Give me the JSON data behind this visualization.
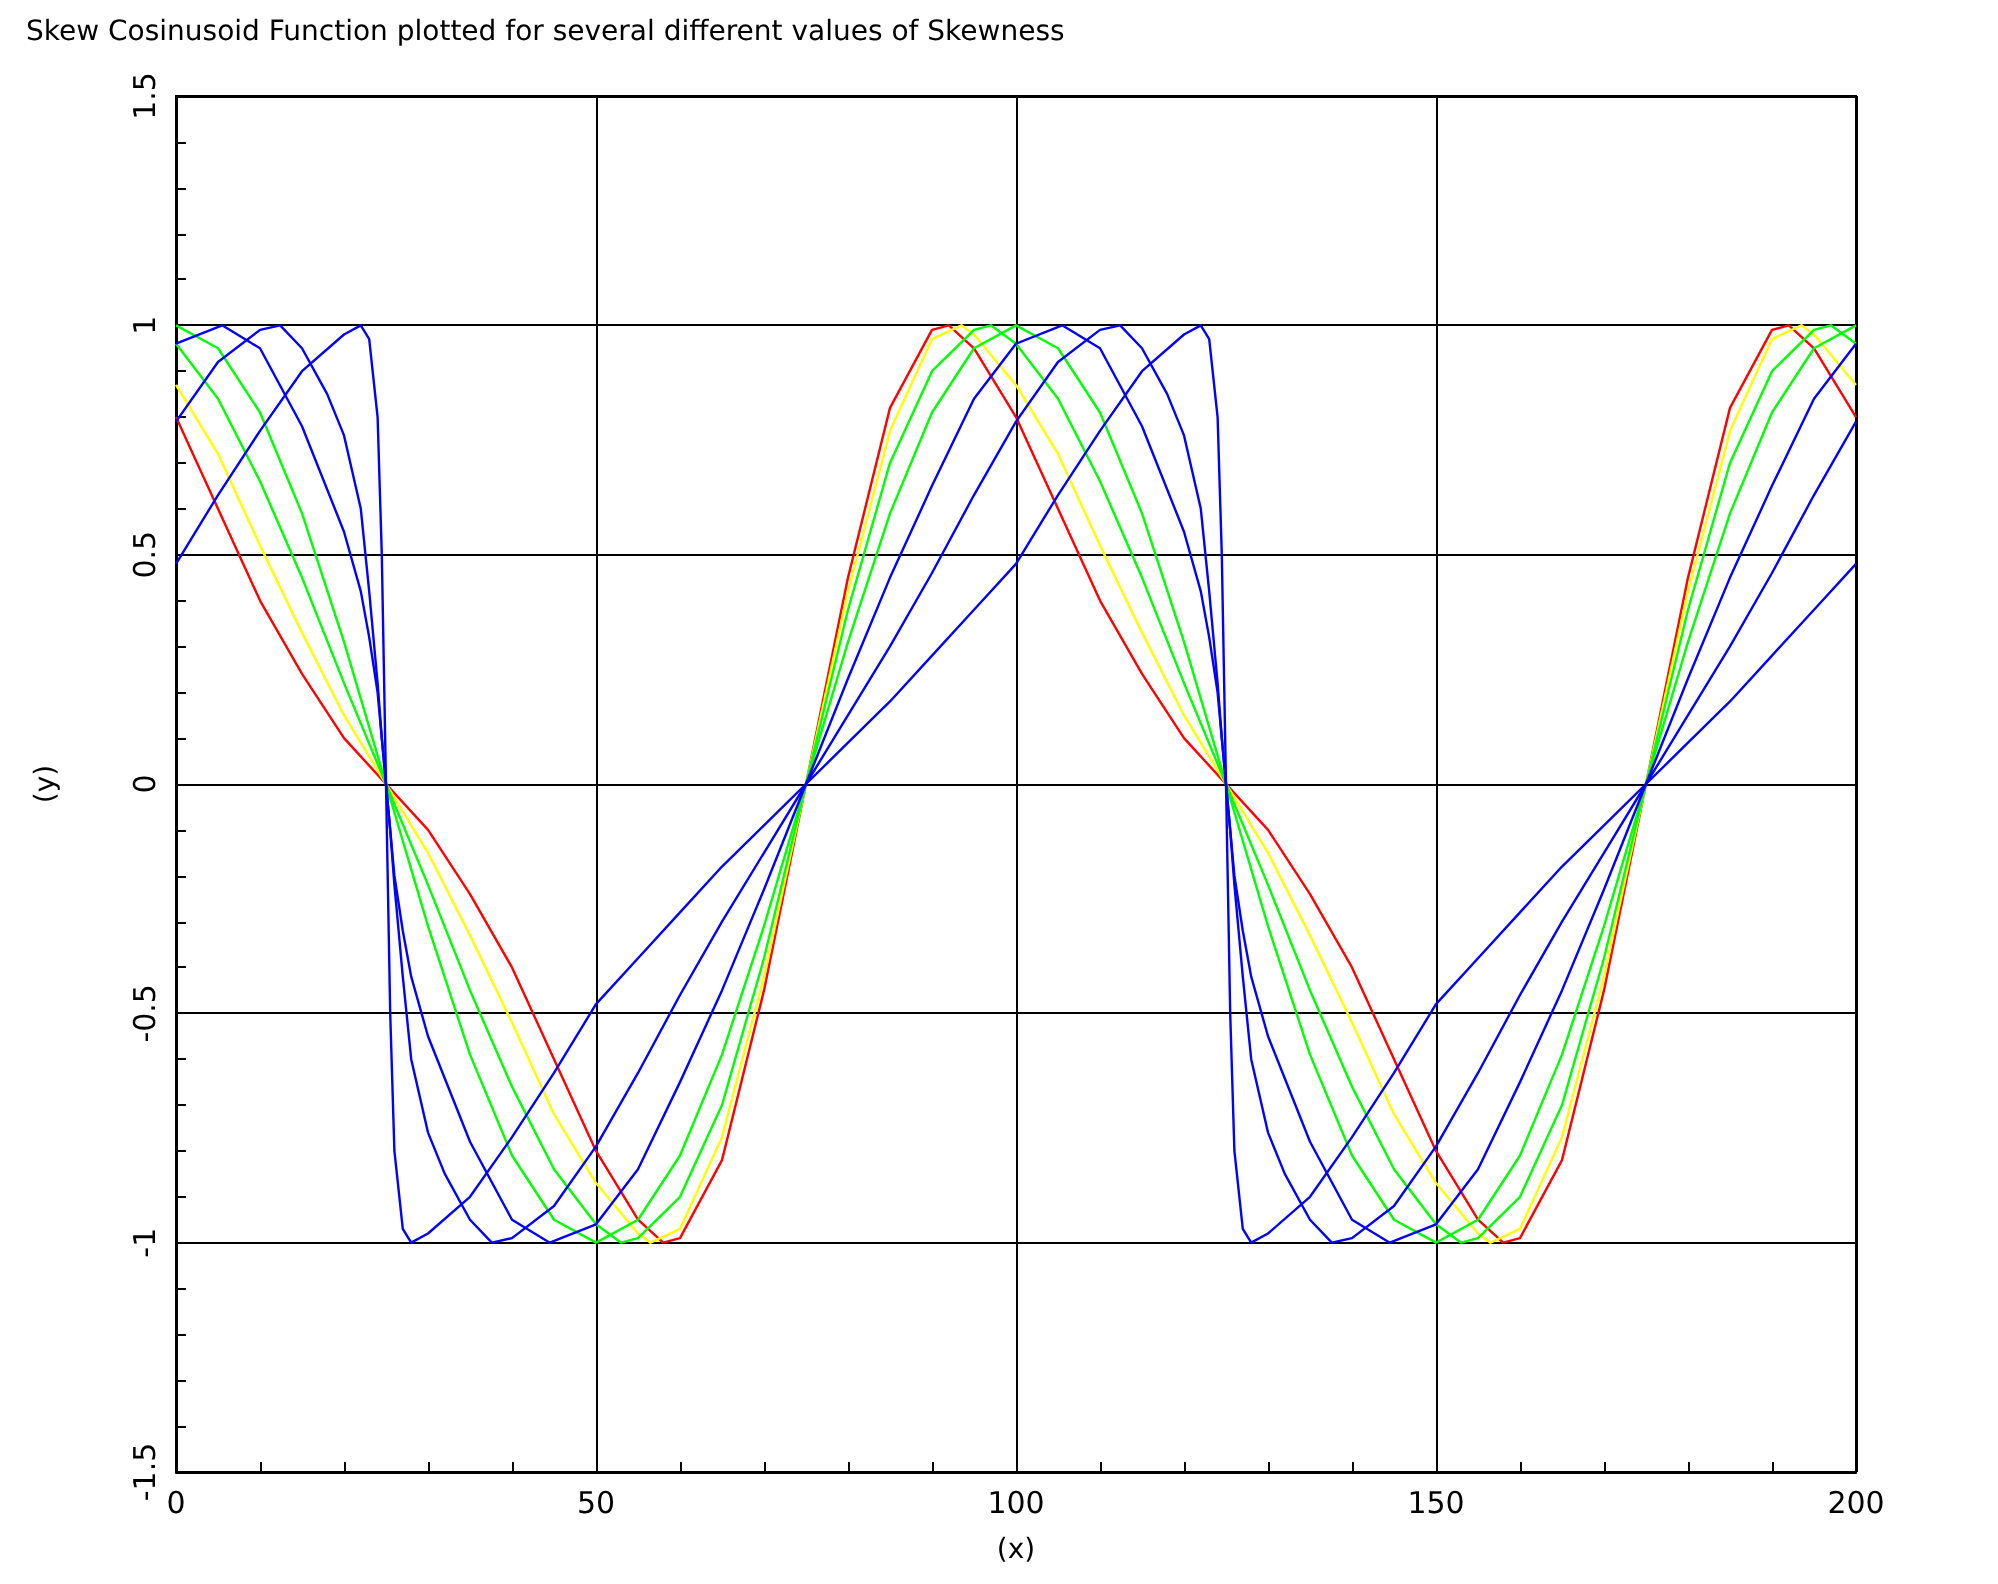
{
  "chart_data": {
    "type": "line",
    "title": "Skew Cosinusoid Function plotted for several different values of Skewness",
    "xlabel": "(x)",
    "ylabel": "(y)",
    "xlim": [
      0,
      200
    ],
    "ylim": [
      -1.5,
      1.5
    ],
    "xticks": [
      0,
      50,
      100,
      150,
      200
    ],
    "yticks": [
      -1.5,
      -1,
      -0.5,
      0,
      0.5,
      1,
      1.5
    ],
    "grid": true,
    "series": [
      {
        "color": "#ff0000",
        "x": [
          0,
          5,
          10,
          15,
          20,
          25,
          30,
          35,
          40,
          45,
          50,
          55,
          58,
          60,
          65,
          70,
          75,
          80,
          85,
          90,
          92,
          95,
          100,
          105,
          110,
          115,
          120,
          125,
          130,
          135,
          140,
          145,
          150,
          155,
          158,
          160,
          165,
          170,
          175,
          180,
          185,
          190,
          192,
          195,
          200
        ],
        "values": [
          0.8,
          0.6,
          0.4,
          0.24,
          0.1,
          0,
          -0.1,
          -0.24,
          -0.4,
          -0.6,
          -0.8,
          -0.95,
          -1,
          -0.99,
          -0.82,
          -0.45,
          0,
          0.45,
          0.82,
          0.99,
          1,
          0.95,
          0.8,
          0.6,
          0.4,
          0.24,
          0.1,
          0,
          -0.1,
          -0.24,
          -0.4,
          -0.6,
          -0.8,
          -0.95,
          -1,
          -0.99,
          -0.82,
          -0.45,
          0,
          0.45,
          0.82,
          0.99,
          1,
          0.95,
          0.8
        ]
      },
      {
        "color": "#ffff00",
        "x": [
          0,
          5,
          10,
          15,
          20,
          25,
          30,
          35,
          40,
          45,
          50,
          55,
          56.5,
          60,
          65,
          70,
          75,
          80,
          85,
          90,
          93.5,
          95,
          100,
          105,
          110,
          115,
          120,
          125,
          130,
          135,
          140,
          145,
          150,
          155,
          156.5,
          160,
          165,
          170,
          175,
          180,
          185,
          190,
          193.5,
          195,
          200
        ],
        "values": [
          0.87,
          0.72,
          0.52,
          0.33,
          0.15,
          0,
          -0.15,
          -0.33,
          -0.52,
          -0.72,
          -0.87,
          -0.98,
          -1,
          -0.97,
          -0.77,
          -0.42,
          0,
          0.42,
          0.77,
          0.97,
          1,
          0.98,
          0.87,
          0.72,
          0.52,
          0.33,
          0.15,
          0,
          -0.15,
          -0.33,
          -0.52,
          -0.72,
          -0.87,
          -0.98,
          -1,
          -0.97,
          -0.77,
          -0.42,
          0,
          0.42,
          0.77,
          0.97,
          1,
          0.98,
          0.87
        ]
      },
      {
        "color": "#00ff00",
        "x": [
          0,
          5,
          10,
          15,
          20,
          25,
          30,
          35,
          40,
          45,
          50,
          53,
          55,
          60,
          65,
          70,
          75,
          80,
          85,
          90,
          95,
          97,
          100,
          105,
          110,
          115,
          120,
          125,
          130,
          135,
          140,
          145,
          150,
          153,
          155,
          160,
          165,
          170,
          175,
          180,
          185,
          190,
          195,
          197,
          200
        ],
        "values": [
          0.96,
          0.84,
          0.66,
          0.45,
          0.22,
          0,
          -0.22,
          -0.45,
          -0.66,
          -0.84,
          -0.96,
          -1,
          -0.99,
          -0.9,
          -0.7,
          -0.38,
          0,
          0.38,
          0.7,
          0.9,
          0.99,
          1,
          0.96,
          0.84,
          0.66,
          0.45,
          0.22,
          0,
          -0.22,
          -0.45,
          -0.66,
          -0.84,
          -0.96,
          -1,
          -0.99,
          -0.9,
          -0.7,
          -0.38,
          0,
          0.38,
          0.7,
          0.9,
          0.99,
          1,
          0.96
        ]
      },
      {
        "color": "#00ff00",
        "x": [
          0,
          5,
          10,
          15,
          20,
          25,
          30,
          35,
          40,
          45,
          50,
          55,
          60,
          65,
          70,
          75,
          80,
          85,
          90,
          95,
          100,
          105,
          110,
          115,
          120,
          125,
          130,
          135,
          140,
          145,
          150,
          155,
          160,
          165,
          170,
          175,
          180,
          185,
          190,
          195,
          200
        ],
        "values": [
          1,
          0.95,
          0.81,
          0.59,
          0.31,
          0,
          -0.31,
          -0.59,
          -0.81,
          -0.95,
          -1,
          -0.95,
          -0.81,
          -0.59,
          -0.31,
          0,
          0.31,
          0.59,
          0.81,
          0.95,
          1,
          0.95,
          0.81,
          0.59,
          0.31,
          0,
          -0.31,
          -0.59,
          -0.81,
          -0.95,
          -1,
          -0.95,
          -0.81,
          -0.59,
          -0.31,
          0,
          0.31,
          0.59,
          0.81,
          0.95,
          1
        ]
      },
      {
        "color": "#0000ff",
        "x": [
          0,
          5.5,
          10,
          15,
          20,
          22,
          23,
          24,
          25,
          26,
          27,
          28,
          30,
          35,
          40,
          44.5,
          50,
          55,
          60,
          65,
          70,
          75,
          80,
          85,
          90,
          95,
          100,
          105.5,
          110,
          115,
          120,
          122,
          123,
          124,
          125,
          126,
          127,
          128,
          130,
          135,
          140,
          144.5,
          150,
          155,
          160,
          165,
          170,
          175,
          180,
          185,
          190,
          195,
          200
        ],
        "values": [
          0.96,
          1,
          0.95,
          0.78,
          0.55,
          0.42,
          0.32,
          0.2,
          0,
          -0.2,
          -0.32,
          -0.42,
          -0.55,
          -0.78,
          -0.95,
          -1,
          -0.96,
          -0.84,
          -0.65,
          -0.45,
          -0.23,
          0,
          0.23,
          0.45,
          0.65,
          0.84,
          0.96,
          1,
          0.95,
          0.78,
          0.55,
          0.42,
          0.32,
          0.2,
          0,
          -0.2,
          -0.32,
          -0.42,
          -0.55,
          -0.78,
          -0.95,
          -1,
          -0.96,
          -0.84,
          -0.65,
          -0.45,
          -0.23,
          0,
          0.23,
          0.45,
          0.65,
          0.84,
          0.96
        ]
      },
      {
        "color": "#0000ff",
        "x": [
          0,
          5,
          10,
          12.4,
          15,
          18,
          20,
          22,
          23,
          24,
          24.5,
          25,
          25.5,
          26,
          27,
          28,
          30,
          32,
          35,
          37.6,
          40,
          45,
          50,
          55,
          60,
          65,
          70,
          75,
          80,
          85,
          90,
          95,
          100,
          105,
          110,
          112.4,
          115,
          118,
          120,
          122,
          123,
          124,
          124.5,
          125,
          125.5,
          126,
          127,
          128,
          130,
          132,
          135,
          137.6,
          140,
          145,
          150,
          155,
          160,
          165,
          170,
          175,
          180,
          185,
          190,
          195,
          200
        ],
        "values": [
          0.79,
          0.92,
          0.99,
          1,
          0.95,
          0.85,
          0.76,
          0.6,
          0.42,
          0.22,
          0.1,
          0,
          -0.1,
          -0.22,
          -0.42,
          -0.6,
          -0.76,
          -0.85,
          -0.95,
          -1,
          -0.99,
          -0.92,
          -0.79,
          -0.63,
          -0.46,
          -0.3,
          -0.15,
          0,
          0.15,
          0.3,
          0.46,
          0.63,
          0.79,
          0.92,
          0.99,
          1,
          0.95,
          0.85,
          0.76,
          0.6,
          0.42,
          0.22,
          0.1,
          0,
          -0.1,
          -0.22,
          -0.42,
          -0.6,
          -0.76,
          -0.85,
          -0.95,
          -1,
          -0.99,
          -0.92,
          -0.79,
          -0.63,
          -0.46,
          -0.3,
          -0.15,
          0,
          0.15,
          0.3,
          0.46,
          0.63,
          0.79
        ]
      },
      {
        "color": "#0000ff",
        "x": [
          0,
          5,
          10,
          15,
          20,
          22,
          23,
          24,
          24.5,
          25,
          25.5,
          26,
          27,
          28,
          30,
          35,
          40,
          45,
          50,
          55,
          60,
          65,
          70,
          75,
          80,
          85,
          90,
          95,
          100,
          105,
          110,
          115,
          120,
          122,
          123,
          124,
          124.5,
          125,
          125.5,
          126,
          127,
          128,
          130,
          135,
          140,
          145,
          150,
          155,
          160,
          165,
          170,
          175,
          180,
          185,
          190,
          195,
          200
        ],
        "values": [
          0.48,
          0.63,
          0.77,
          0.9,
          0.98,
          1,
          0.97,
          0.8,
          0.5,
          0,
          -0.5,
          -0.8,
          -0.97,
          -1,
          -0.98,
          -0.9,
          -0.77,
          -0.63,
          -0.48,
          -0.38,
          -0.28,
          -0.18,
          -0.09,
          0,
          0.09,
          0.18,
          0.28,
          0.38,
          0.48,
          0.63,
          0.77,
          0.9,
          0.98,
          1,
          0.97,
          0.8,
          0.5,
          0,
          -0.5,
          -0.8,
          -0.97,
          -1,
          -0.98,
          -0.9,
          -0.77,
          -0.63,
          -0.48,
          -0.38,
          -0.28,
          -0.18,
          -0.09,
          0,
          0.09,
          0.18,
          0.28,
          0.38,
          0.48
        ]
      }
    ]
  }
}
